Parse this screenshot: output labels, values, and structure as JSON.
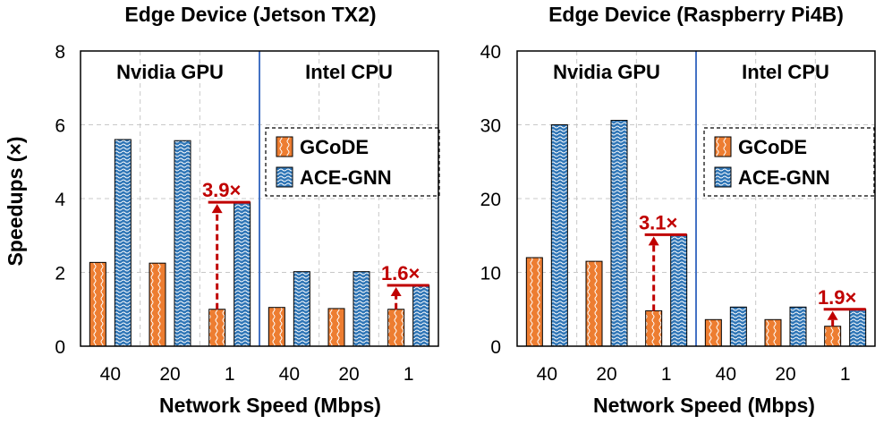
{
  "colors": {
    "gcode": "#ED7D31",
    "ace": "#2E75B6",
    "annotation": "#C00000",
    "divider": "#4472C4",
    "grid": "#C8C8C8"
  },
  "shared": {
    "ylabel": "Speedups (×)",
    "xlabel": "Network Speed (Mbps)"
  },
  "chart_data": [
    {
      "type": "bar",
      "title": "Edge Device (Jetson TX2)",
      "categories": [
        "40",
        "20",
        "1",
        "40",
        "20",
        "1"
      ],
      "groups": [
        "Nvidia GPU",
        "Intel CPU"
      ],
      "ylim": [
        0,
        8
      ],
      "yticks": [
        "0",
        "2",
        "4",
        "6",
        "8"
      ],
      "series": [
        {
          "name": "GCoDE",
          "values": [
            2.27,
            2.25,
            1.0,
            1.05,
            1.02,
            1.0
          ]
        },
        {
          "name": "ACE-GNN",
          "values": [
            5.6,
            5.57,
            3.9,
            2.02,
            2.02,
            1.65
          ]
        }
      ],
      "annotations": [
        {
          "category_index": 2,
          "label": "3.9×"
        },
        {
          "category_index": 5,
          "label": "1.6×"
        }
      ]
    },
    {
      "type": "bar",
      "title": "Edge Device (Raspberry Pi4B)",
      "categories": [
        "40",
        "20",
        "1",
        "40",
        "20",
        "1"
      ],
      "groups": [
        "Nvidia GPU",
        "Intel CPU"
      ],
      "ylim": [
        0,
        40
      ],
      "yticks": [
        "0",
        "10",
        "20",
        "30",
        "40"
      ],
      "series": [
        {
          "name": "GCoDE",
          "values": [
            12.0,
            11.5,
            4.8,
            3.6,
            3.6,
            2.7
          ]
        },
        {
          "name": "ACE-GNN",
          "values": [
            30.0,
            30.6,
            15.1,
            5.3,
            5.3,
            5.0
          ]
        }
      ],
      "annotations": [
        {
          "category_index": 2,
          "label": "3.1×"
        },
        {
          "category_index": 5,
          "label": "1.9×"
        }
      ]
    }
  ]
}
